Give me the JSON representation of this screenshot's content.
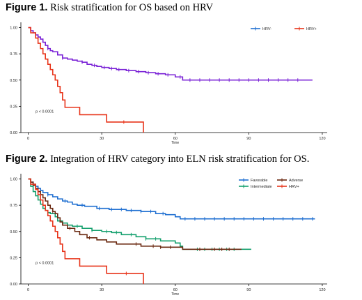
{
  "figure1": {
    "label": "Figure 1.",
    "caption": " Risk stratification for OS based on HRV"
  },
  "figure2": {
    "label": "Figure 2.",
    "caption": " Integration of HRV category into ELN risk stratification for OS."
  },
  "chart_data": [
    {
      "type": "line",
      "title": "Figure 1. Risk stratification for OS based on HRV",
      "xlabel": "Time",
      "ylabel": "",
      "xlim": [
        -3,
        122
      ],
      "ylim": [
        0,
        1.05
      ],
      "xticks": [
        "0",
        "30",
        "60",
        "90",
        "120"
      ],
      "yticks": [
        "0.00",
        "0.25",
        "0.50",
        "0.75",
        "1.00"
      ],
      "legend_position": "top-right",
      "annotation": "p < 0.0001",
      "grid": false,
      "series": [
        {
          "name": "HRV-",
          "color": "#7a22d6",
          "legend_color": "#1f6fd1",
          "steps": [
            [
              0,
              1.0
            ],
            [
              1,
              0.97
            ],
            [
              2,
              0.95
            ],
            [
              3,
              0.93
            ],
            [
              4,
              0.91
            ],
            [
              5,
              0.89
            ],
            [
              6,
              0.86
            ],
            [
              7,
              0.83
            ],
            [
              8,
              0.8
            ],
            [
              9,
              0.78
            ],
            [
              10,
              0.77
            ],
            [
              12,
              0.74
            ],
            [
              14,
              0.71
            ],
            [
              16,
              0.7
            ],
            [
              18,
              0.69
            ],
            [
              20,
              0.68
            ],
            [
              22,
              0.67
            ],
            [
              24,
              0.65
            ],
            [
              26,
              0.64
            ],
            [
              28,
              0.63
            ],
            [
              30,
              0.62
            ],
            [
              33,
              0.61
            ],
            [
              36,
              0.6
            ],
            [
              40,
              0.59
            ],
            [
              44,
              0.58
            ],
            [
              48,
              0.57
            ],
            [
              52,
              0.56
            ],
            [
              56,
              0.55
            ],
            [
              60,
              0.53
            ],
            [
              63,
              0.5
            ],
            [
              116,
              0.5
            ]
          ],
          "censor": [
            8,
            14,
            22,
            27,
            31,
            34,
            37,
            41,
            45,
            49,
            53,
            57,
            62,
            66,
            70,
            74,
            78,
            82,
            86,
            90,
            94,
            98,
            102,
            106,
            110
          ]
        },
        {
          "name": "HRV+",
          "color": "#e8341a",
          "legend_color": "#e8341a",
          "steps": [
            [
              0,
              1.0
            ],
            [
              1,
              0.95
            ],
            [
              3,
              0.9
            ],
            [
              4,
              0.85
            ],
            [
              5,
              0.8
            ],
            [
              6,
              0.75
            ],
            [
              7,
              0.7
            ],
            [
              8,
              0.65
            ],
            [
              9,
              0.6
            ],
            [
              10,
              0.55
            ],
            [
              11,
              0.5
            ],
            [
              12,
              0.44
            ],
            [
              13,
              0.38
            ],
            [
              14,
              0.31
            ],
            [
              15,
              0.24
            ],
            [
              20,
              0.24
            ],
            [
              21,
              0.17
            ],
            [
              31,
              0.17
            ],
            [
              32,
              0.1
            ],
            [
              46,
              0.1
            ],
            [
              47,
              0.0
            ]
          ],
          "censor": [
            39
          ]
        }
      ]
    },
    {
      "type": "line",
      "title": "Figure 2. Integration of HRV category into ELN risk stratification for OS.",
      "xlabel": "Time",
      "ylabel": "",
      "xlim": [
        -3,
        122
      ],
      "ylim": [
        0,
        1.05
      ],
      "xticks": [
        "0",
        "30",
        "60",
        "90",
        "120"
      ],
      "yticks": [
        "0.00",
        "0.25",
        "0.50",
        "0.75",
        "1.00"
      ],
      "legend_position": "top-right",
      "annotation": "p < 0.0001",
      "grid": false,
      "series": [
        {
          "name": "Favorable",
          "color": "#1f6fd1",
          "steps": [
            [
              0,
              1.0
            ],
            [
              1,
              0.97
            ],
            [
              2,
              0.95
            ],
            [
              3,
              0.93
            ],
            [
              4,
              0.91
            ],
            [
              5,
              0.89
            ],
            [
              6,
              0.87
            ],
            [
              8,
              0.85
            ],
            [
              10,
              0.83
            ],
            [
              12,
              0.81
            ],
            [
              14,
              0.79
            ],
            [
              16,
              0.78
            ],
            [
              18,
              0.76
            ],
            [
              20,
              0.75
            ],
            [
              23,
              0.74
            ],
            [
              28,
              0.72
            ],
            [
              33,
              0.71
            ],
            [
              40,
              0.7
            ],
            [
              46,
              0.69
            ],
            [
              52,
              0.67
            ],
            [
              56,
              0.66
            ],
            [
              60,
              0.64
            ],
            [
              62,
              0.62
            ],
            [
              117,
              0.62
            ]
          ],
          "censor": [
            8,
            15,
            22,
            29,
            34,
            38,
            42,
            46,
            50,
            55,
            64,
            68,
            72,
            76,
            80,
            84,
            88,
            92,
            96,
            100,
            104,
            108,
            112,
            116
          ]
        },
        {
          "name": "Intermediate",
          "color": "#14a06e",
          "steps": [
            [
              0,
              1.0
            ],
            [
              1,
              0.93
            ],
            [
              2,
              0.88
            ],
            [
              3,
              0.84
            ],
            [
              4,
              0.8
            ],
            [
              5,
              0.76
            ],
            [
              6,
              0.72
            ],
            [
              7,
              0.7
            ],
            [
              8,
              0.68
            ],
            [
              9,
              0.67
            ],
            [
              11,
              0.64
            ],
            [
              12,
              0.6
            ],
            [
              14,
              0.58
            ],
            [
              16,
              0.56
            ],
            [
              18,
              0.55
            ],
            [
              22,
              0.53
            ],
            [
              26,
              0.51
            ],
            [
              30,
              0.5
            ],
            [
              34,
              0.49
            ],
            [
              38,
              0.47
            ],
            [
              44,
              0.45
            ],
            [
              48,
              0.43
            ],
            [
              54,
              0.41
            ],
            [
              60,
              0.39
            ],
            [
              62,
              0.36
            ],
            [
              63,
              0.33
            ],
            [
              91,
              0.33
            ]
          ],
          "censor": [
            20,
            26,
            32,
            36,
            42,
            48,
            52,
            69,
            72,
            75,
            78,
            81,
            84
          ]
        },
        {
          "name": "Adverse",
          "color": "#6b2a12",
          "steps": [
            [
              0,
              1.0
            ],
            [
              1,
              0.97
            ],
            [
              2,
              0.94
            ],
            [
              3,
              0.91
            ],
            [
              4,
              0.88
            ],
            [
              5,
              0.85
            ],
            [
              6,
              0.82
            ],
            [
              7,
              0.79
            ],
            [
              8,
              0.75
            ],
            [
              9,
              0.72
            ],
            [
              10,
              0.69
            ],
            [
              11,
              0.67
            ],
            [
              12,
              0.63
            ],
            [
              13,
              0.59
            ],
            [
              14,
              0.56
            ],
            [
              16,
              0.53
            ],
            [
              19,
              0.5
            ],
            [
              21,
              0.47
            ],
            [
              24,
              0.44
            ],
            [
              28,
              0.42
            ],
            [
              32,
              0.4
            ],
            [
              36,
              0.38
            ],
            [
              46,
              0.36
            ],
            [
              54,
              0.35
            ],
            [
              63,
              0.33
            ],
            [
              87,
              0.33
            ]
          ],
          "censor": [
            10,
            17,
            25,
            44,
            51,
            54,
            58,
            70,
            76,
            79,
            82
          ]
        },
        {
          "name": "HRV+",
          "color": "#e8341a",
          "steps": [
            [
              0,
              1.0
            ],
            [
              1,
              0.95
            ],
            [
              3,
              0.9
            ],
            [
              4,
              0.85
            ],
            [
              5,
              0.8
            ],
            [
              6,
              0.75
            ],
            [
              7,
              0.7
            ],
            [
              8,
              0.65
            ],
            [
              9,
              0.6
            ],
            [
              10,
              0.55
            ],
            [
              11,
              0.5
            ],
            [
              12,
              0.44
            ],
            [
              13,
              0.38
            ],
            [
              14,
              0.31
            ],
            [
              15,
              0.24
            ],
            [
              20,
              0.24
            ],
            [
              21,
              0.17
            ],
            [
              31,
              0.17
            ],
            [
              32,
              0.1
            ],
            [
              46,
              0.1
            ],
            [
              47,
              0.0
            ]
          ],
          "censor": [
            40
          ]
        }
      ]
    }
  ]
}
